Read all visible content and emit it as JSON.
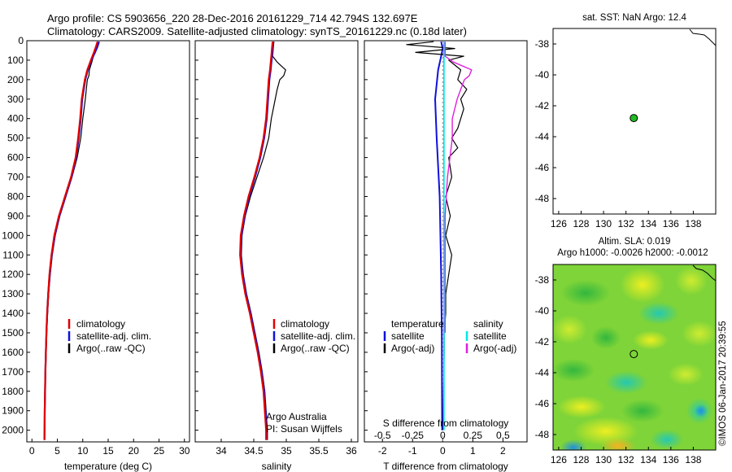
{
  "header": {
    "line1": "Argo profile: CS 5903656_220 28-Dec-2016 20161229_714 42.794S 132.697E",
    "line2": "Climatology: CARS2009. Satellite-adjusted climatology: synTS_20161229.nc (0.18d later)"
  },
  "colors": {
    "climatology": "#e00000",
    "satellite": "#1010dd",
    "argo": "#000000",
    "sat_salinity": "#00e8e8",
    "argo_salinity": "#dd22dd",
    "marker": "#22bb22"
  },
  "footer": {
    "argo_australia": "Argo Australia",
    "pi": "PI: Susan Wijffels",
    "imos": "©IMOS 06-Jan-2017 20:39:55"
  },
  "chart_data": [
    {
      "id": "temperature",
      "type": "line",
      "xlabel": "temperature (deg C)",
      "ylabel": "",
      "xlim": [
        -1,
        31
      ],
      "ylim": [
        2060,
        0
      ],
      "xticks": [
        0,
        5,
        10,
        15,
        20,
        25,
        30
      ],
      "yticks": [
        0,
        100,
        200,
        300,
        400,
        500,
        600,
        700,
        800,
        900,
        1000,
        1100,
        1200,
        1300,
        1400,
        1500,
        1600,
        1700,
        1800,
        1900,
        2000
      ],
      "legend": [
        "climatology",
        "satellite-adj. clim.",
        "Argo(..raw -QC)"
      ],
      "series": [
        {
          "name": "Argo(..raw -QC)",
          "depth": [
            5,
            30,
            60,
            100,
            150,
            180,
            200,
            250,
            300,
            400,
            500,
            600,
            700,
            800,
            900,
            1000,
            1100,
            1200,
            1300,
            1400,
            1500,
            1600,
            1700,
            1800,
            1900,
            2000,
            2050
          ],
          "values": [
            13.0,
            12.7,
            12.3,
            11.9,
            11.3,
            11.2,
            10.9,
            10.7,
            10.5,
            10.0,
            9.6,
            8.9,
            7.9,
            6.7,
            5.5,
            4.6,
            4.0,
            3.6,
            3.3,
            3.1,
            2.9,
            2.8,
            2.7,
            2.6,
            2.55,
            2.5,
            2.48
          ]
        },
        {
          "name": "satellite-adj. clim.",
          "depth": [
            5,
            30,
            60,
            100,
            150,
            200,
            250,
            300,
            400,
            500,
            600,
            700,
            800,
            900,
            1000,
            1100,
            1200,
            1300,
            1400,
            1500,
            1600,
            1700,
            1800,
            1900,
            2000,
            2050
          ],
          "values": [
            13.2,
            12.9,
            12.4,
            11.7,
            11.0,
            10.5,
            10.2,
            9.9,
            9.6,
            9.2,
            8.7,
            7.8,
            6.6,
            5.4,
            4.5,
            3.9,
            3.5,
            3.2,
            3.0,
            2.85,
            2.75,
            2.65,
            2.58,
            2.52,
            2.48,
            2.46
          ]
        },
        {
          "name": "climatology",
          "depth": [
            5,
            30,
            60,
            100,
            150,
            200,
            250,
            300,
            400,
            500,
            600,
            700,
            800,
            900,
            1000,
            1100,
            1200,
            1300,
            1400,
            1500,
            1600,
            1700,
            1800,
            1900,
            2000,
            2050
          ],
          "values": [
            12.9,
            12.6,
            12.2,
            11.6,
            10.9,
            10.4,
            10.1,
            9.8,
            9.5,
            9.1,
            8.6,
            7.7,
            6.5,
            5.3,
            4.4,
            3.85,
            3.45,
            3.2,
            3.0,
            2.85,
            2.75,
            2.65,
            2.58,
            2.52,
            2.48,
            2.46
          ]
        }
      ]
    },
    {
      "id": "salinity",
      "type": "line",
      "xlabel": "salinity",
      "ylabel": "",
      "xlim": [
        33.6,
        36.1
      ],
      "ylim": [
        2060,
        0
      ],
      "xticks": [
        34,
        34.5,
        35,
        35.5,
        36
      ],
      "xtick_labels": [
        "34",
        "34.5",
        "35",
        "35.5",
        "36"
      ],
      "legend": [
        "climatology",
        "satellite-adj. clim.",
        "Argo(..raw -QC)"
      ],
      "series": [
        {
          "name": "Argo(..raw -QC)",
          "depth": [
            5,
            40,
            80,
            110,
            150,
            180,
            200,
            250,
            300,
            350,
            400,
            500,
            600,
            700,
            800,
            900,
            1000,
            1100,
            1200,
            1300,
            1400,
            1500,
            1600,
            1700,
            1800,
            1900,
            2000,
            2050
          ],
          "values": [
            34.81,
            34.8,
            34.79,
            34.86,
            34.99,
            34.96,
            34.9,
            34.86,
            34.83,
            34.8,
            34.77,
            34.73,
            34.65,
            34.55,
            34.45,
            34.37,
            34.32,
            34.31,
            34.34,
            34.39,
            34.46,
            34.52,
            34.58,
            34.63,
            34.67,
            34.69,
            34.71,
            34.71
          ]
        },
        {
          "name": "satellite-adj. clim.",
          "depth": [
            5,
            40,
            80,
            150,
            200,
            300,
            400,
            500,
            600,
            700,
            800,
            900,
            1000,
            1100,
            1200,
            1300,
            1400,
            1500,
            1600,
            1700,
            1800,
            1900,
            2000,
            2050
          ],
          "values": [
            34.8,
            34.79,
            34.78,
            34.76,
            34.74,
            34.72,
            34.7,
            34.66,
            34.6,
            34.52,
            34.43,
            34.36,
            34.31,
            34.3,
            34.33,
            34.38,
            34.45,
            34.51,
            34.57,
            34.62,
            34.66,
            34.68,
            34.7,
            34.7
          ]
        },
        {
          "name": "climatology",
          "depth": [
            5,
            40,
            80,
            150,
            200,
            300,
            400,
            500,
            600,
            700,
            800,
            900,
            1000,
            1100,
            1200,
            1300,
            1400,
            1500,
            1600,
            1700,
            1800,
            1900,
            2000,
            2050
          ],
          "values": [
            34.79,
            34.78,
            34.77,
            34.75,
            34.73,
            34.71,
            34.69,
            34.65,
            34.59,
            34.51,
            34.42,
            34.35,
            34.3,
            34.29,
            34.32,
            34.37,
            34.44,
            34.5,
            34.56,
            34.61,
            34.65,
            34.67,
            34.69,
            34.69
          ]
        }
      ]
    },
    {
      "id": "difference",
      "type": "line",
      "xlabel": "T difference from climatology",
      "x2label": "S difference from climatology",
      "ylabel": "",
      "xlim": [
        -2.6,
        2.8
      ],
      "ylim": [
        2060,
        0
      ],
      "xticks": [
        -2,
        -1,
        0,
        1,
        2
      ],
      "x2lim": [
        -0.65,
        0.7
      ],
      "x2ticks": [
        -0.5,
        -0.25,
        0,
        0.25,
        0.5
      ],
      "x2tick_labels": [
        "-0.5",
        "-0.25",
        "0",
        "0.25",
        "0.5"
      ],
      "legend_title_t": "temperature",
      "legend_title_s": "salinity",
      "legend_t": [
        "satellite",
        "Argo(-adj)"
      ],
      "legend_s": [
        "satellite",
        "Argo(-adj)"
      ],
      "series": [
        {
          "name": "T satellite",
          "axis": "T",
          "depth": [
            5,
            40,
            80,
            150,
            300,
            500,
            800,
            1200,
            1500,
            2000
          ],
          "values": [
            -0.05,
            0.0,
            -0.05,
            -0.15,
            -0.25,
            -0.2,
            -0.1,
            -0.05,
            -0.03,
            -0.02
          ]
        },
        {
          "name": "T Argo(-adj)",
          "axis": "T",
          "depth": [
            5,
            20,
            40,
            60,
            80,
            100,
            150,
            200,
            250,
            300,
            350,
            400,
            450,
            500,
            550,
            600,
            700,
            800,
            900,
            1000,
            1100,
            1200,
            1300,
            1400,
            1500,
            1600,
            1800,
            2000
          ],
          "values": [
            -0.3,
            -1.2,
            0.4,
            -0.9,
            0.7,
            0.2,
            0.6,
            0.5,
            0.8,
            0.6,
            0.7,
            0.6,
            0.5,
            0.3,
            0.5,
            0.2,
            0.3,
            0.1,
            0.25,
            0.1,
            0.3,
            0.2,
            0.1,
            0.1,
            0.05,
            0.05,
            0.03,
            0.02
          ]
        },
        {
          "name": "S satellite",
          "axis": "S",
          "depth": [
            5,
            100,
            300,
            600,
            1000,
            1400,
            2000
          ],
          "values": [
            0.01,
            0.01,
            0.01,
            0.01,
            0.01,
            0.01,
            0.01
          ]
        },
        {
          "name": "S Argo(-adj)",
          "axis": "S",
          "depth": [
            5,
            60,
            80,
            110,
            150,
            180,
            200,
            250,
            300,
            350,
            400,
            500,
            600,
            700,
            800,
            900,
            1000,
            1100,
            1200,
            1300,
            1400,
            1500
          ],
          "values": [
            0.02,
            0.02,
            0.02,
            0.09,
            0.24,
            0.22,
            0.18,
            0.15,
            0.12,
            0.1,
            0.08,
            0.08,
            0.06,
            0.04,
            0.03,
            0.02,
            0.02,
            0.02,
            0.02,
            0.02,
            0.02,
            0.02
          ]
        }
      ]
    },
    {
      "id": "sst_map",
      "type": "scatter",
      "title": "sat. SST: NaN Argo: 12.4",
      "xlabel": "",
      "ylabel": "",
      "xlim": [
        125.5,
        140
      ],
      "ylim": [
        -49,
        -37
      ],
      "xticks": [
        126,
        128,
        130,
        132,
        134,
        136,
        138
      ],
      "yticks": [
        -38,
        -40,
        -42,
        -44,
        -46,
        -48
      ],
      "points": [
        {
          "lon": 132.697,
          "lat": -42.794
        }
      ]
    },
    {
      "id": "sla_map",
      "type": "heatmap",
      "title": "Altim. SLA: 0.019",
      "subtitle": "Argo h1000: -0.0026 h2000: -0.0012",
      "xlabel": "",
      "ylabel": "",
      "xlim": [
        125.5,
        140
      ],
      "ylim": [
        -49,
        -37
      ],
      "xticks": [
        126,
        128,
        130,
        132,
        134,
        136,
        138
      ],
      "yticks": [
        -38,
        -40,
        -42,
        -44,
        -46,
        -48
      ],
      "points": [
        {
          "lon": 132.697,
          "lat": -42.794
        }
      ]
    }
  ]
}
